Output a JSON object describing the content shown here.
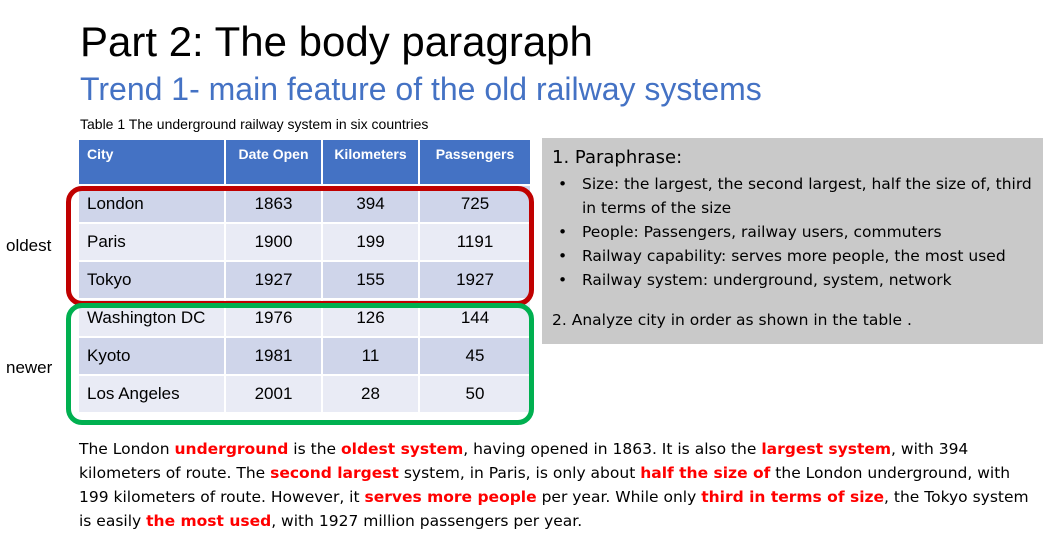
{
  "title": "Part 2: The body paragraph",
  "subtitle": "Trend 1- main feature of the old railway systems",
  "table": {
    "caption": "Table 1 The underground railway system in six countries",
    "headers": [
      "City",
      "Date Open",
      "Kilometers",
      "Passengers"
    ],
    "rows": [
      [
        "London",
        "1863",
        "394",
        "725"
      ],
      [
        "Paris",
        "1900",
        "199",
        "1191"
      ],
      [
        "Tokyo",
        "1927",
        "155",
        "1927"
      ],
      [
        "Washington DC",
        "1976",
        "126",
        "144"
      ],
      [
        "Kyoto",
        "1981",
        "11",
        "45"
      ],
      [
        "Los Angeles",
        "2001",
        "28",
        "50"
      ]
    ],
    "group_labels": {
      "oldest": "oldest",
      "newer": "newer"
    },
    "colors": {
      "header": "#4472c4",
      "row_dark": "#cfd5ea",
      "row_light": "#e9ebf5",
      "oldest_outline": "#c00000",
      "newer_outline": "#00b050"
    }
  },
  "panel": {
    "heading": "1. Paraphrase:",
    "bullets": [
      "Size: the largest, the second largest, half the size of, third in terms of the size",
      "People: Passengers, railway users, commuters",
      "Railway capability: serves more people, the most used",
      "Railway system: underground, system, network"
    ],
    "note": "2. Analyze city in order as shown in the table .",
    "background": "#c9c9c9"
  },
  "paragraph": {
    "segments": [
      {
        "text": "The London ",
        "highlight": false
      },
      {
        "text": "underground",
        "highlight": true
      },
      {
        "text": " is the ",
        "highlight": false
      },
      {
        "text": "oldest system",
        "highlight": true
      },
      {
        "text": ", having opened in 1863. It is also the ",
        "highlight": false
      },
      {
        "text": "largest system",
        "highlight": true
      },
      {
        "text": ", with 394 kilometers of route. The ",
        "highlight": false
      },
      {
        "text": "second largest",
        "highlight": true
      },
      {
        "text": " system, in Paris, is only about ",
        "highlight": false
      },
      {
        "text": "half the size of",
        "highlight": true
      },
      {
        "text": " the London underground, with 199 kilometers of route. However, it ",
        "highlight": false
      },
      {
        "text": "serves more people",
        "highlight": true
      },
      {
        "text": " per year. While only ",
        "highlight": false
      },
      {
        "text": "third in terms of size",
        "highlight": true
      },
      {
        "text": ", the Tokyo system is easily ",
        "highlight": false
      },
      {
        "text": "the most used",
        "highlight": true
      },
      {
        "text": ", with 1927 million passengers per year.",
        "highlight": false
      }
    ],
    "highlight_color": "#ff0000"
  }
}
